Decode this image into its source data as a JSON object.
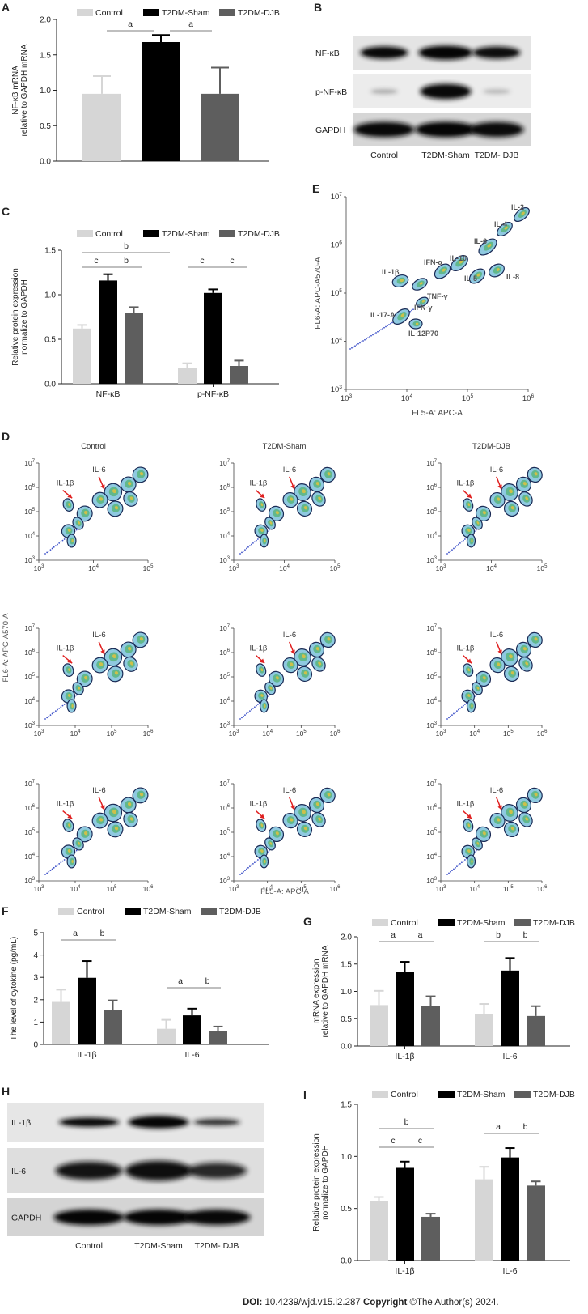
{
  "colors": {
    "control": "#d6d6d6",
    "sham": "#000000",
    "djb": "#5e5e5e",
    "arrow": "#e02020",
    "gate": "#1a2a55"
  },
  "legend": [
    "Control",
    "T2DM-Sham",
    "T2DM-DJB"
  ],
  "panelA": {
    "letter": "A",
    "chart_data": {
      "type": "bar",
      "title": "",
      "ylabel_lines": [
        "NF-κB mRNA",
        "relative to GAPDH mRNA"
      ],
      "ylim": [
        0,
        2.0
      ],
      "yticks": [
        "0.0",
        "0.5",
        "1.0",
        "1.5",
        "2.0"
      ],
      "series": [
        {
          "name": "Control",
          "values": [
            0.95
          ],
          "errors": [
            0.25
          ]
        },
        {
          "name": "T2DM-Sham",
          "values": [
            1.68
          ],
          "errors": [
            0.1
          ]
        },
        {
          "name": "T2DM-DJB",
          "values": [
            0.95
          ],
          "errors": [
            0.37
          ]
        }
      ],
      "sig_labels": [
        "a",
        "a"
      ]
    }
  },
  "panelB": {
    "letter": "B",
    "rows": [
      "NF-κB",
      "p-NF-κB",
      "GAPDH"
    ],
    "lanes": [
      "Control",
      "T2DM-Sham",
      "T2DM- DJB"
    ]
  },
  "panelC": {
    "letter": "C",
    "chart_data": {
      "type": "bar",
      "ylabel_lines": [
        "Relative protein expression",
        "normalize to GAPDH"
      ],
      "ylim": [
        0,
        1.5
      ],
      "yticks": [
        "0.0",
        "0.5",
        "1.0",
        "1.5"
      ],
      "categories": [
        "NF-κB",
        "p-NF-κB"
      ],
      "series": [
        {
          "name": "Control",
          "values": [
            0.62,
            0.18
          ],
          "errors": [
            0.04,
            0.05
          ]
        },
        {
          "name": "T2DM-Sham",
          "values": [
            1.16,
            1.02
          ],
          "errors": [
            0.07,
            0.04
          ]
        },
        {
          "name": "T2DM-DJB",
          "values": [
            0.8,
            0.2
          ],
          "errors": [
            0.06,
            0.06
          ]
        }
      ],
      "sig_labels": [
        "b",
        "c",
        "b",
        "c",
        "c"
      ]
    }
  },
  "panelE": {
    "letter": "E",
    "xlabel": "FL5-A: APC-A",
    "ylabel": "FL6-A: APC-A570-A",
    "tick_bases": [
      "10",
      "10",
      "10",
      "10",
      "10"
    ],
    "tick_exps": [
      "3",
      "4",
      "5",
      "6",
      "7"
    ],
    "populations": [
      "IL-2",
      "IL-4",
      "IL-6",
      "IL-8",
      "IL-10",
      "IL-5",
      "IFN-α",
      "IL-1β",
      "TNF-γ",
      "IFN-γ",
      "IL-17-A",
      "IL-12P70"
    ]
  },
  "panelD": {
    "letter": "D",
    "col_titles": [
      "Control",
      "T2DM-Sham",
      "T2DM-DJB"
    ],
    "arrow_labels": [
      "IL-1β",
      "IL-6"
    ],
    "ylabel": "FL6-A: APC-A570-A",
    "xlabel": "FL5-A: APC-A"
  },
  "panelF": {
    "letter": "F",
    "chart_data": {
      "type": "bar",
      "ylabel_lines": [
        "The level of cytokine (pg/mL)"
      ],
      "ylim": [
        0,
        5
      ],
      "yticks": [
        "0",
        "1",
        "2",
        "3",
        "4",
        "5"
      ],
      "categories": [
        "IL-1β",
        "IL-6"
      ],
      "series": [
        {
          "name": "Control",
          "values": [
            1.9,
            0.7
          ],
          "errors": [
            0.55,
            0.4
          ]
        },
        {
          "name": "T2DM-Sham",
          "values": [
            2.98,
            1.3
          ],
          "errors": [
            0.75,
            0.3
          ]
        },
        {
          "name": "T2DM-DJB",
          "values": [
            1.55,
            0.58
          ],
          "errors": [
            0.42,
            0.22
          ]
        }
      ],
      "sig_labels": [
        "a",
        "b",
        "a",
        "b"
      ]
    }
  },
  "panelG": {
    "letter": "G",
    "chart_data": {
      "type": "bar",
      "ylabel_lines": [
        "mRNA expression",
        "relative to GAPDH mRNA"
      ],
      "ylim": [
        0,
        2.0
      ],
      "yticks": [
        "0.0",
        "0.5",
        "1.0",
        "1.5",
        "2.0"
      ],
      "categories": [
        "IL-1β",
        "IL-6"
      ],
      "series": [
        {
          "name": "Control",
          "values": [
            0.75,
            0.58
          ],
          "errors": [
            0.26,
            0.19
          ]
        },
        {
          "name": "T2DM-Sham",
          "values": [
            1.36,
            1.38
          ],
          "errors": [
            0.18,
            0.23
          ]
        },
        {
          "name": "T2DM-DJB",
          "values": [
            0.73,
            0.55
          ],
          "errors": [
            0.18,
            0.18
          ]
        }
      ],
      "sig_labels": [
        "a",
        "a",
        "b",
        "b"
      ]
    }
  },
  "panelH": {
    "letter": "H",
    "rows": [
      "IL-1β",
      "IL-6",
      "GAPDH"
    ],
    "lanes": [
      "Control",
      "T2DM-Sham",
      "T2DM- DJB"
    ]
  },
  "panelI": {
    "letter": "I",
    "chart_data": {
      "type": "bar",
      "ylabel_lines": [
        "Relative protein expression",
        "normalize to GAPDH"
      ],
      "ylim": [
        0,
        1.5
      ],
      "yticks": [
        "0.0",
        "0.5",
        "1.0",
        "1.5"
      ],
      "categories": [
        "IL-1β",
        "IL-6"
      ],
      "series": [
        {
          "name": "Control",
          "values": [
            0.57,
            0.78
          ],
          "errors": [
            0.04,
            0.12
          ]
        },
        {
          "name": "T2DM-Sham",
          "values": [
            0.89,
            0.99
          ],
          "errors": [
            0.06,
            0.09
          ]
        },
        {
          "name": "T2DM-DJB",
          "values": [
            0.42,
            0.72
          ],
          "errors": [
            0.03,
            0.04
          ]
        }
      ],
      "sig_labels": [
        "b",
        "c",
        "c",
        "a",
        "b"
      ]
    }
  },
  "footer": {
    "doi_label": "DOI:",
    "doi_value": "10.4239/wjd.v15.i2.287",
    "copyright_label": "Copyright",
    "copyright_value": "©The Author(s) 2024."
  }
}
